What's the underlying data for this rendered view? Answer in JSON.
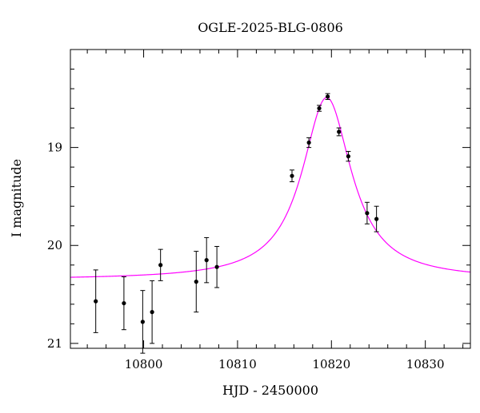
{
  "chart_data": {
    "type": "scatter",
    "title": "OGLE-2025-BLG-0806",
    "xlabel": "HJD - 2450000",
    "ylabel": "I magnitude",
    "xlim": [
      10792.2,
      10834.8
    ],
    "ylim": [
      21.05,
      18.0
    ],
    "y_inverted": true,
    "xticks": [
      10800,
      10810,
      10820,
      10830
    ],
    "xtick_labels": [
      "10800",
      "10810",
      "10820",
      "10830"
    ],
    "yticks": [
      19,
      20,
      21
    ],
    "ytick_labels": [
      "19",
      "20",
      "21"
    ],
    "grid": false,
    "colors": {
      "model": "#ff00ff",
      "points": "#000000",
      "axes": "#000000"
    },
    "series": [
      {
        "kind": "points_with_errorbars",
        "points": [
          {
            "x": 10794.9,
            "y": 20.57,
            "err": 0.32
          },
          {
            "x": 10797.9,
            "y": 20.59,
            "err": 0.27
          },
          {
            "x": 10799.9,
            "y": 20.78,
            "err": 0.32
          },
          {
            "x": 10800.9,
            "y": 20.68,
            "err": 0.32
          },
          {
            "x": 10801.8,
            "y": 20.2,
            "err": 0.16
          },
          {
            "x": 10805.6,
            "y": 20.37,
            "err": 0.31
          },
          {
            "x": 10806.7,
            "y": 20.15,
            "err": 0.23
          },
          {
            "x": 10807.8,
            "y": 20.22,
            "err": 0.21
          },
          {
            "x": 10815.8,
            "y": 19.29,
            "err": 0.06
          },
          {
            "x": 10817.6,
            "y": 18.95,
            "err": 0.05
          },
          {
            "x": 10818.7,
            "y": 18.6,
            "err": 0.03
          },
          {
            "x": 10819.6,
            "y": 18.48,
            "err": 0.03
          },
          {
            "x": 10820.8,
            "y": 18.84,
            "err": 0.04
          },
          {
            "x": 10821.8,
            "y": 19.09,
            "err": 0.05
          },
          {
            "x": 10823.8,
            "y": 19.67,
            "err": 0.11
          },
          {
            "x": 10824.8,
            "y": 19.73,
            "err": 0.13
          }
        ]
      },
      {
        "kind": "model_curve",
        "model": {
          "type": "lorentzian_peak",
          "baseline": 20.35,
          "peak": 18.49,
          "t0": 10819.5,
          "width": 3.2
        }
      }
    ]
  }
}
